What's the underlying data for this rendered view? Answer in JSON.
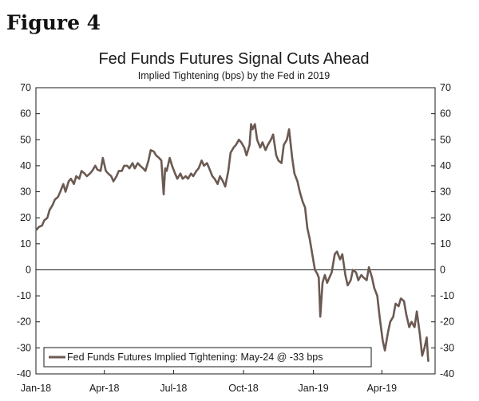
{
  "figure_label": "Figure 4",
  "chart_data": {
    "type": "line",
    "title": "Fed Funds Futures Signal Cuts Ahead",
    "subtitle": "Implied Tightening (bps) by the Fed in 2019",
    "xlabel": "",
    "ylabel": "",
    "ylim": [
      -40,
      70
    ],
    "yticks": [
      70,
      60,
      50,
      40,
      30,
      20,
      10,
      0,
      -10,
      -20,
      -30,
      -40
    ],
    "xlim": [
      "2018-01-01",
      "2019-06-10"
    ],
    "xticks": [
      {
        "date": "2018-01-01",
        "label": "Jan-18"
      },
      {
        "date": "2018-04-01",
        "label": "Apr-18"
      },
      {
        "date": "2018-07-01",
        "label": "Jul-18"
      },
      {
        "date": "2018-10-01",
        "label": "Oct-18"
      },
      {
        "date": "2019-01-01",
        "label": "Jan-19"
      },
      {
        "date": "2019-04-01",
        "label": "Apr-19"
      }
    ],
    "zero_line": true,
    "grid": false,
    "legend_position": "bottom-left",
    "series": [
      {
        "name": "Fed Funds Futures Implied Tightening: May-24 @ -33 bps",
        "color": "#6b5a52",
        "points": [
          [
            "2018-01-02",
            15.5
          ],
          [
            "2018-01-05",
            16.5
          ],
          [
            "2018-01-09",
            17
          ],
          [
            "2018-01-12",
            19
          ],
          [
            "2018-01-16",
            20
          ],
          [
            "2018-01-19",
            23
          ],
          [
            "2018-01-23",
            25
          ],
          [
            "2018-01-26",
            27
          ],
          [
            "2018-01-30",
            28
          ],
          [
            "2018-02-02",
            30
          ],
          [
            "2018-02-06",
            33
          ],
          [
            "2018-02-09",
            30
          ],
          [
            "2018-02-13",
            34
          ],
          [
            "2018-02-16",
            35
          ],
          [
            "2018-02-20",
            33
          ],
          [
            "2018-02-23",
            36
          ],
          [
            "2018-02-27",
            35
          ],
          [
            "2018-03-02",
            38
          ],
          [
            "2018-03-06",
            37
          ],
          [
            "2018-03-09",
            36
          ],
          [
            "2018-03-13",
            37
          ],
          [
            "2018-03-16",
            38
          ],
          [
            "2018-03-20",
            40
          ],
          [
            "2018-03-23",
            38.5
          ],
          [
            "2018-03-27",
            38
          ],
          [
            "2018-03-30",
            43
          ],
          [
            "2018-04-03",
            38
          ],
          [
            "2018-04-06",
            37
          ],
          [
            "2018-04-10",
            36
          ],
          [
            "2018-04-13",
            34
          ],
          [
            "2018-04-17",
            36
          ],
          [
            "2018-04-20",
            38
          ],
          [
            "2018-04-24",
            38
          ],
          [
            "2018-04-27",
            40
          ],
          [
            "2018-05-01",
            40
          ],
          [
            "2018-05-04",
            39
          ],
          [
            "2018-05-08",
            41
          ],
          [
            "2018-05-11",
            39
          ],
          [
            "2018-05-15",
            41
          ],
          [
            "2018-05-18",
            40
          ],
          [
            "2018-05-22",
            39
          ],
          [
            "2018-05-25",
            38
          ],
          [
            "2018-05-29",
            42
          ],
          [
            "2018-06-01",
            46
          ],
          [
            "2018-06-05",
            45.5
          ],
          [
            "2018-06-08",
            44
          ],
          [
            "2018-06-12",
            43
          ],
          [
            "2018-06-15",
            42
          ],
          [
            "2018-06-18",
            29
          ],
          [
            "2018-06-20",
            39
          ],
          [
            "2018-06-22",
            38
          ],
          [
            "2018-06-26",
            43
          ],
          [
            "2018-06-29",
            40
          ],
          [
            "2018-07-03",
            37
          ],
          [
            "2018-07-06",
            35
          ],
          [
            "2018-07-10",
            37
          ],
          [
            "2018-07-13",
            35
          ],
          [
            "2018-07-17",
            36
          ],
          [
            "2018-07-20",
            35
          ],
          [
            "2018-07-24",
            37
          ],
          [
            "2018-07-27",
            36
          ],
          [
            "2018-07-31",
            38
          ],
          [
            "2018-08-03",
            39
          ],
          [
            "2018-08-07",
            42
          ],
          [
            "2018-08-10",
            40
          ],
          [
            "2018-08-14",
            41
          ],
          [
            "2018-08-17",
            39
          ],
          [
            "2018-08-21",
            36
          ],
          [
            "2018-08-24",
            35
          ],
          [
            "2018-08-28",
            33
          ],
          [
            "2018-08-31",
            36
          ],
          [
            "2018-09-04",
            34
          ],
          [
            "2018-09-07",
            32
          ],
          [
            "2018-09-11",
            38
          ],
          [
            "2018-09-14",
            45
          ],
          [
            "2018-09-18",
            47
          ],
          [
            "2018-09-21",
            48
          ],
          [
            "2018-09-25",
            50
          ],
          [
            "2018-09-28",
            49
          ],
          [
            "2018-10-02",
            47
          ],
          [
            "2018-10-05",
            44
          ],
          [
            "2018-10-09",
            48
          ],
          [
            "2018-10-11",
            56
          ],
          [
            "2018-10-13",
            54
          ],
          [
            "2018-10-16",
            56
          ],
          [
            "2018-10-19",
            50
          ],
          [
            "2018-10-23",
            47
          ],
          [
            "2018-10-26",
            49
          ],
          [
            "2018-10-30",
            46
          ],
          [
            "2018-11-02",
            48
          ],
          [
            "2018-11-06",
            50
          ],
          [
            "2018-11-09",
            52
          ],
          [
            "2018-11-13",
            44
          ],
          [
            "2018-11-16",
            42
          ],
          [
            "2018-11-20",
            41
          ],
          [
            "2018-11-23",
            48
          ],
          [
            "2018-11-27",
            50
          ],
          [
            "2018-11-30",
            54
          ],
          [
            "2018-12-04",
            43
          ],
          [
            "2018-12-07",
            37
          ],
          [
            "2018-12-11",
            34
          ],
          [
            "2018-12-14",
            30
          ],
          [
            "2018-12-18",
            26
          ],
          [
            "2018-12-21",
            24
          ],
          [
            "2018-12-24",
            16
          ],
          [
            "2018-12-27",
            12
          ],
          [
            "2018-12-31",
            5
          ],
          [
            "2019-01-03",
            0
          ],
          [
            "2019-01-06",
            -1.5
          ],
          [
            "2019-01-08",
            -3
          ],
          [
            "2019-01-10",
            -18
          ],
          [
            "2019-01-13",
            -5
          ],
          [
            "2019-01-16",
            -2
          ],
          [
            "2019-01-19",
            -5
          ],
          [
            "2019-01-22",
            -3
          ],
          [
            "2019-01-25",
            -1
          ],
          [
            "2019-01-29",
            6
          ],
          [
            "2019-02-01",
            7
          ],
          [
            "2019-02-05",
            4
          ],
          [
            "2019-02-08",
            6
          ],
          [
            "2019-02-12",
            -2
          ],
          [
            "2019-02-15",
            -6
          ],
          [
            "2019-02-19",
            -4
          ],
          [
            "2019-02-22",
            0
          ],
          [
            "2019-02-26",
            -1
          ],
          [
            "2019-03-01",
            -4
          ],
          [
            "2019-03-05",
            -2
          ],
          [
            "2019-03-08",
            -3
          ],
          [
            "2019-03-12",
            -4
          ],
          [
            "2019-03-15",
            1
          ],
          [
            "2019-03-19",
            -3
          ],
          [
            "2019-03-22",
            -7
          ],
          [
            "2019-03-26",
            -10
          ],
          [
            "2019-03-29",
            -18
          ],
          [
            "2019-04-02",
            -27
          ],
          [
            "2019-04-05",
            -31
          ],
          [
            "2019-04-09",
            -24
          ],
          [
            "2019-04-12",
            -20
          ],
          [
            "2019-04-16",
            -18
          ],
          [
            "2019-04-19",
            -13
          ],
          [
            "2019-04-23",
            -14
          ],
          [
            "2019-04-26",
            -11
          ],
          [
            "2019-04-30",
            -12
          ],
          [
            "2019-05-03",
            -17
          ],
          [
            "2019-05-07",
            -22
          ],
          [
            "2019-05-10",
            -20
          ],
          [
            "2019-05-14",
            -22
          ],
          [
            "2019-05-17",
            -16
          ],
          [
            "2019-05-21",
            -25
          ],
          [
            "2019-05-24",
            -33
          ],
          [
            "2019-05-27",
            -30
          ],
          [
            "2019-05-30",
            -26
          ],
          [
            "2019-06-01",
            -35
          ]
        ]
      }
    ]
  }
}
